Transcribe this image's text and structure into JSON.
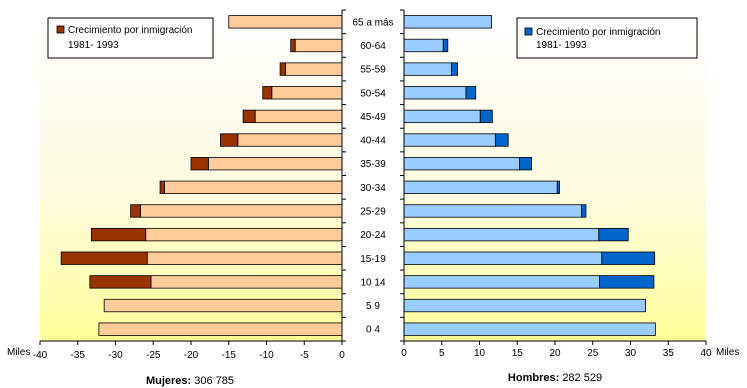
{
  "chart_data": {
    "type": "bar",
    "categories": [
      "65 a más",
      "60-64",
      "55-59",
      "50-54",
      "45-49",
      "40-44",
      "35-39",
      "30-34",
      "25-29",
      "20-24",
      "15-19",
      "10 14",
      "5 9",
      "0 4"
    ],
    "unit": "Miles",
    "left": {
      "label": "Mujeres:",
      "total": "306 785",
      "xlim": [
        -40,
        0
      ],
      "ticks": [
        -40,
        -35,
        -30,
        -25,
        -20,
        -15,
        -10,
        -5,
        0
      ],
      "base": [
        15,
        6.2,
        7.5,
        9.3,
        11.5,
        13.8,
        17.7,
        23.5,
        26.7,
        26,
        25.8,
        25.3,
        31.5,
        32.2
      ],
      "immigration": [
        0,
        0.6,
        0.7,
        1.2,
        1.6,
        2.3,
        2.3,
        0.6,
        1.3,
        7.2,
        11.4,
        8.1,
        0,
        0
      ],
      "base_color": "#ffcc99",
      "immigration_color": "#993300",
      "legend": [
        "Crecimiento por inmigración",
        "1981- 1993"
      ]
    },
    "right": {
      "label": "Hombres:",
      "total": "282 529",
      "xlim": [
        0,
        40
      ],
      "ticks": [
        0,
        5,
        10,
        15,
        20,
        25,
        30,
        35,
        40
      ],
      "base": [
        11.6,
        5.2,
        6.3,
        8.2,
        10.1,
        12.1,
        15.3,
        20.3,
        23.5,
        25.8,
        26.2,
        25.9,
        32,
        33.3
      ],
      "immigration": [
        0,
        0.6,
        0.8,
        1.3,
        1.6,
        1.7,
        1.6,
        0.3,
        0.6,
        3.9,
        7,
        7.2,
        0,
        0
      ],
      "base_color": "#99ccff",
      "immigration_color": "#0066cc",
      "legend": [
        "Crecimiento por inmigración",
        "1981- 1993"
      ]
    }
  }
}
